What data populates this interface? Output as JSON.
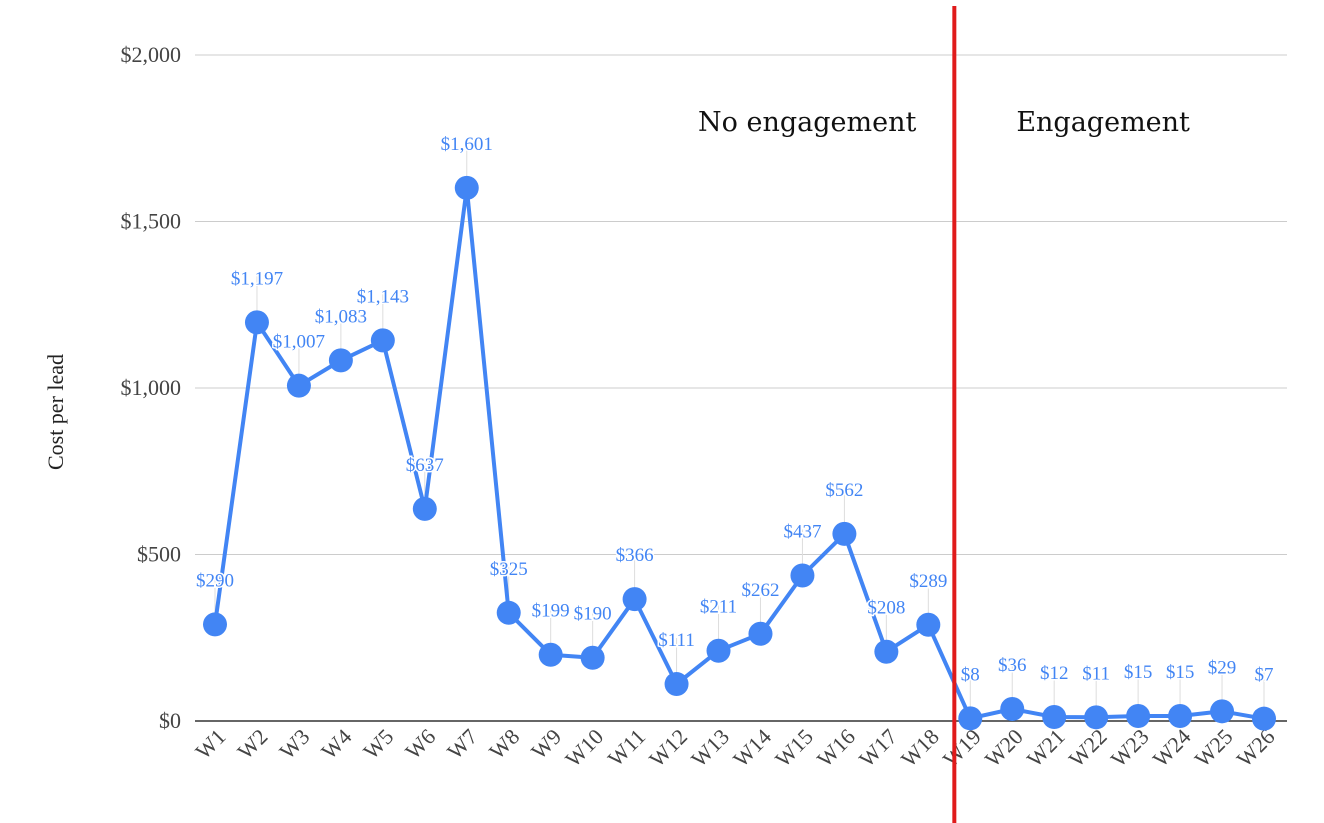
{
  "chart_data": {
    "type": "line",
    "ylabel": "Cost per lead",
    "ylim": [
      0,
      2000
    ],
    "yticks": [
      0,
      500,
      1000,
      1500,
      2000
    ],
    "ytick_labels": [
      "$0",
      "$500",
      "$1,000",
      "$1,500",
      "$2,000"
    ],
    "grid": true,
    "categories": [
      "W1",
      "W2",
      "W3",
      "W4",
      "W5",
      "W6",
      "W7",
      "W8",
      "W9",
      "W10",
      "W11",
      "W12",
      "W13",
      "W14",
      "W15",
      "W16",
      "W17",
      "W18",
      "W19",
      "W20",
      "W21",
      "W22",
      "W23",
      "W24",
      "W25",
      "W26"
    ],
    "series": [
      {
        "values": [
          290,
          1197,
          1007,
          1083,
          1143,
          637,
          1601,
          325,
          199,
          190,
          366,
          111,
          211,
          262,
          437,
          562,
          208,
          289,
          8,
          36,
          12,
          11,
          15,
          15,
          29,
          7
        ],
        "labels": [
          "$290",
          "$1,197",
          "$1,007",
          "$1,083",
          "$1,143",
          "$637",
          "$1,601",
          "$325",
          "$199",
          "$190",
          "$366",
          "$111",
          "$211",
          "$262",
          "$437",
          "$562",
          "$208",
          "$289",
          "$8",
          "$36",
          "$12",
          "$11",
          "$15",
          "$15",
          "$29",
          "$7"
        ],
        "color": "#4285f4"
      }
    ],
    "divider": {
      "after_category": "W18",
      "color": "#e01b1b"
    },
    "annotations": [
      {
        "text": "No engagement",
        "side": "left"
      },
      {
        "text": "Engagement",
        "side": "right"
      }
    ]
  }
}
